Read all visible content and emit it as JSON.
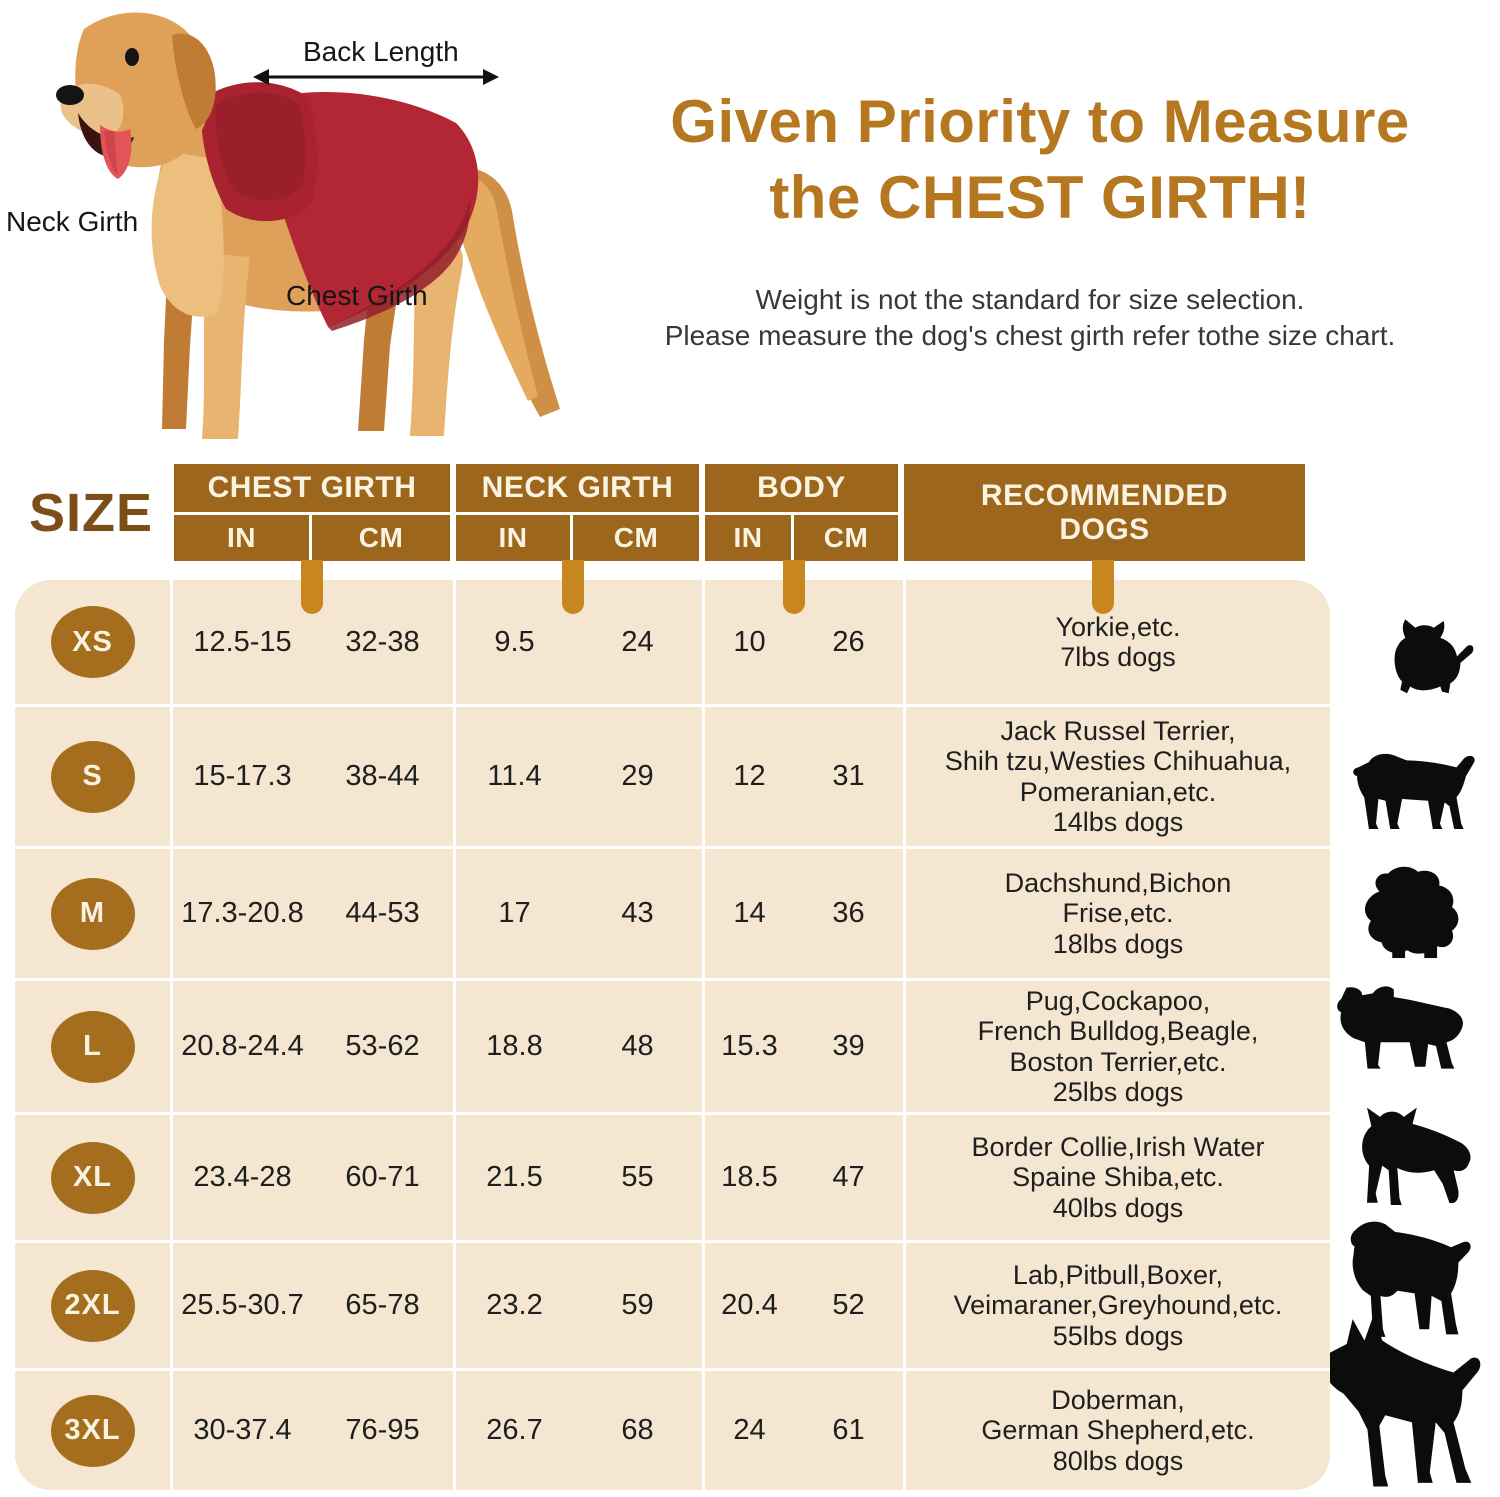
{
  "hero": {
    "diagram": {
      "back_length_label": "Back Length",
      "neck_girth_label": "Neck Girth",
      "chest_girth_label": "Chest Girth",
      "dog_description": "golden retriever wearing a red fleece coat",
      "coat_color": "#b22733"
    },
    "title_line1": "Given Priority to Measure",
    "title_line2": "the CHEST GIRTH!",
    "subtitle_line1": "Weight is not the standard for size selection.",
    "subtitle_line2": "Please measure the dog's chest girth refer tothe size chart."
  },
  "table": {
    "size_header": "SIZE",
    "groups": [
      {
        "label": "CHEST GIRTH",
        "sub": [
          "IN",
          "CM"
        ]
      },
      {
        "label": "NECK GIRTH",
        "sub": [
          "IN",
          "CM"
        ]
      },
      {
        "label": "BODY",
        "sub": [
          "IN",
          "CM"
        ]
      },
      {
        "label_lines": [
          "RECOMMENDED",
          "DOGS"
        ]
      }
    ],
    "rows": [
      {
        "size": "XS",
        "chest_in": "12.5-15",
        "chest_cm": "32-38",
        "neck_in": "9.5",
        "neck_cm": "24",
        "body_in": "10",
        "body_cm": "26",
        "recommended": [
          "Yorkie,etc.",
          "7lbs dogs"
        ],
        "icon": "yorkie-silhouette"
      },
      {
        "size": "S",
        "chest_in": "15-17.3",
        "chest_cm": "38-44",
        "neck_in": "11.4",
        "neck_cm": "29",
        "body_in": "12",
        "body_cm": "31",
        "recommended": [
          "Jack Russel Terrier,",
          "Shih tzu,Westies Chihuahua,",
          "Pomeranian,etc.",
          "14lbs dogs"
        ],
        "icon": "jack-russell-silhouette"
      },
      {
        "size": "M",
        "chest_in": "17.3-20.8",
        "chest_cm": "44-53",
        "neck_in": "17",
        "neck_cm": "43",
        "body_in": "14",
        "body_cm": "36",
        "recommended": [
          "Dachshund,Bichon",
          "Frise,etc.",
          "18lbs dogs"
        ],
        "icon": "bichon-silhouette"
      },
      {
        "size": "L",
        "chest_in": "20.8-24.4",
        "chest_cm": "53-62",
        "neck_in": "18.8",
        "neck_cm": "48",
        "body_in": "15.3",
        "body_cm": "39",
        "recommended": [
          "Pug,Cockapoo,",
          "French Bulldog,Beagle,",
          "Boston Terrier,etc.",
          "25lbs dogs"
        ],
        "icon": "french-bulldog-silhouette"
      },
      {
        "size": "XL",
        "chest_in": "23.4-28",
        "chest_cm": "60-71",
        "neck_in": "21.5",
        "neck_cm": "55",
        "body_in": "18.5",
        "body_cm": "47",
        "recommended": [
          "Border Collie,Irish Water",
          "Spaine Shiba,etc.",
          "40lbs dogs"
        ],
        "icon": "border-collie-silhouette"
      },
      {
        "size": "2XL",
        "chest_in": "25.5-30.7",
        "chest_cm": "65-78",
        "neck_in": "23.2",
        "neck_cm": "59",
        "body_in": "20.4",
        "body_cm": "52",
        "recommended": [
          "Lab,Pitbull,Boxer,",
          "Veimaraner,Greyhound,etc.",
          "55lbs dogs"
        ],
        "icon": "spaniel-silhouette"
      },
      {
        "size": "3XL",
        "chest_in": "30-37.4",
        "chest_cm": "76-95",
        "neck_in": "26.7",
        "neck_cm": "68",
        "body_in": "24",
        "body_cm": "61",
        "recommended": [
          "Doberman,",
          "German Shepherd,etc.",
          "80lbs dogs"
        ],
        "icon": "doberman-silhouette"
      }
    ]
  },
  "colors": {
    "title_brown": "#b5771f",
    "header_brown": "#9c671d",
    "pointer_tab_orange": "#c8861f",
    "badge_brown": "#a56e1e",
    "table_beige": "#f4e6d0",
    "size_label_brown": "#7c4e18",
    "silhouette_black": "#0c0c0c",
    "coat_red": "#b22733"
  },
  "chart_data": {
    "type": "table",
    "title": "Given Priority to Measure the CHEST GIRTH!",
    "note": "Weight is not the standard for size selection. Please measure the dog's chest girth refer tothe size chart.",
    "columns": [
      "SIZE",
      "CHEST GIRTH (IN)",
      "CHEST GIRTH (CM)",
      "NECK GIRTH (IN)",
      "NECK GIRTH (CM)",
      "BODY (IN)",
      "BODY (CM)",
      "RECOMMENDED DOGS"
    ],
    "rows": [
      [
        "XS",
        "12.5-15",
        "32-38",
        "9.5",
        "24",
        "10",
        "26",
        "Yorkie,etc. 7lbs dogs"
      ],
      [
        "S",
        "15-17.3",
        "38-44",
        "11.4",
        "29",
        "12",
        "31",
        "Jack Russel Terrier, Shih tzu,Westies Chihuahua, Pomeranian,etc. 14lbs dogs"
      ],
      [
        "M",
        "17.3-20.8",
        "44-53",
        "17",
        "43",
        "14",
        "36",
        "Dachshund,Bichon Frise,etc. 18lbs dogs"
      ],
      [
        "L",
        "20.8-24.4",
        "53-62",
        "18.8",
        "48",
        "15.3",
        "39",
        "Pug,Cockapoo, French Bulldog,Beagle, Boston Terrier,etc. 25lbs dogs"
      ],
      [
        "XL",
        "23.4-28",
        "60-71",
        "21.5",
        "55",
        "18.5",
        "47",
        "Border Collie,Irish Water Spaine Shiba,etc. 40lbs dogs"
      ],
      [
        "2XL",
        "25.5-30.7",
        "65-78",
        "23.2",
        "59",
        "20.4",
        "52",
        "Lab,Pitbull,Boxer, Veimaraner,Greyhound,etc. 55lbs dogs"
      ],
      [
        "3XL",
        "30-37.4",
        "76-95",
        "26.7",
        "68",
        "24",
        "61",
        "Doberman, German Shepherd,etc. 80lbs dogs"
      ]
    ]
  }
}
